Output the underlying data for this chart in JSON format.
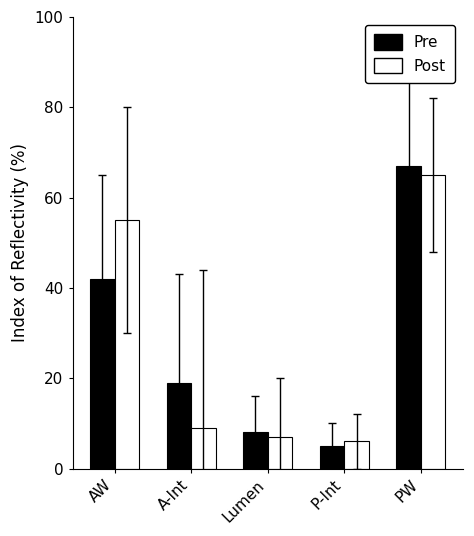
{
  "categories": [
    "AW",
    "A-Int",
    "Lumen",
    "P-Int",
    "PW"
  ],
  "pre_values": [
    42,
    19,
    8,
    5,
    67
  ],
  "post_values": [
    55,
    9,
    7,
    6,
    65
  ],
  "pre_errors": [
    23,
    24,
    8,
    5,
    23
  ],
  "post_errors": [
    25,
    35,
    13,
    6,
    17
  ],
  "pre_color": "#000000",
  "post_color": "#ffffff",
  "bar_edge_color": "#000000",
  "ylabel": "Index of Reflectivity (%)",
  "ylim": [
    0,
    100
  ],
  "yticks": [
    0,
    20,
    40,
    60,
    80,
    100
  ],
  "legend_labels": [
    "Pre",
    "Post"
  ],
  "bar_width": 0.32,
  "error_capsize": 3,
  "error_linewidth": 1.0,
  "background_color": "#ffffff",
  "tick_fontsize": 11,
  "label_fontsize": 12,
  "legend_fontsize": 11,
  "xlabel_rotation": 45,
  "xlabel_ha": "right"
}
